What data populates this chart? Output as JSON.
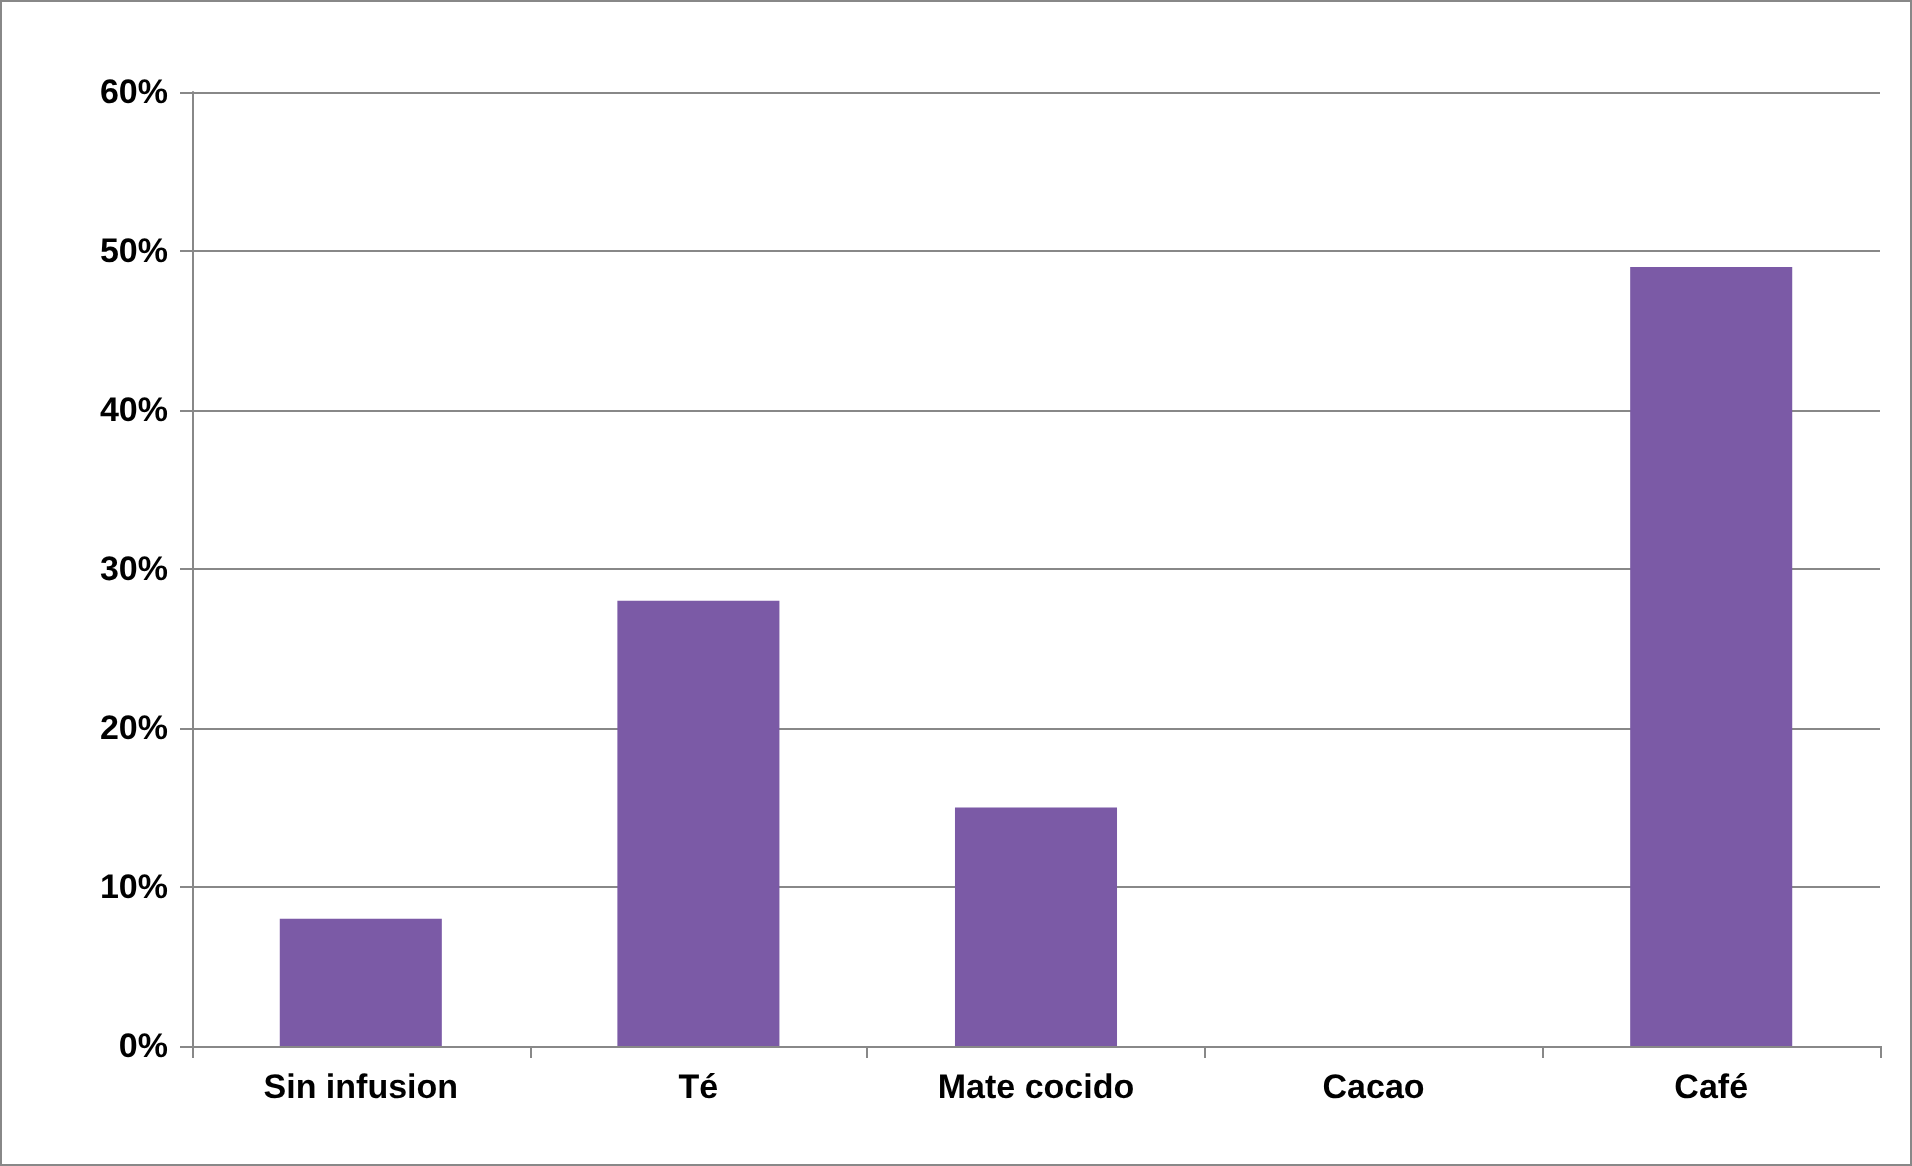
{
  "chart_data": {
    "type": "bar",
    "categories": [
      "Sin infusion",
      "Té",
      "Mate cocido",
      "Cacao",
      "Café"
    ],
    "values": [
      8,
      28,
      15,
      0,
      49
    ],
    "color": "#7b5aa6",
    "ylim": [
      0,
      60
    ],
    "yticks": [
      {
        "value": 0,
        "label": "0%"
      },
      {
        "value": 10,
        "label": "10%"
      },
      {
        "value": 20,
        "label": "20%"
      },
      {
        "value": 30,
        "label": "30%"
      },
      {
        "value": 40,
        "label": "40%"
      },
      {
        "value": 50,
        "label": "50%"
      },
      {
        "value": 60,
        "label": "60%"
      }
    ],
    "grid": true
  }
}
